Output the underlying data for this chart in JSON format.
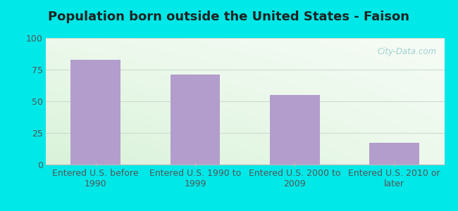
{
  "title": "Population born outside the United States - Faison",
  "categories": [
    "Entered U.S. before\n1990",
    "Entered U.S. 1990 to\n1999",
    "Entered U.S. 2000 to\n2009",
    "Entered U.S. 2010 or\nlater"
  ],
  "values": [
    83,
    71,
    55,
    17
  ],
  "bar_color": "#b39dcc",
  "ylim": [
    0,
    100
  ],
  "yticks": [
    0,
    25,
    50,
    75,
    100
  ],
  "background_outer": "#00e8e8",
  "grid_color": "#d0e8d0",
  "title_fontsize": 13,
  "tick_fontsize": 9,
  "watermark_text": "City-Data.com",
  "watermark_color": "#99cccc",
  "title_color": "#222222"
}
